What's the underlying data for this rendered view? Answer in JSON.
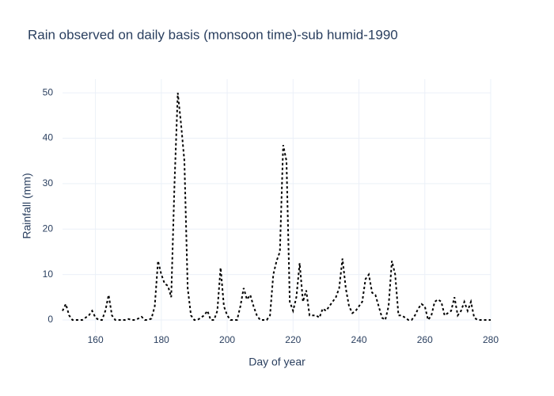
{
  "chart_data": {
    "type": "line",
    "title": "Rain observed on daily basis (monsoon time)-sub humid-1990",
    "x_label": "Day of year",
    "y_label": "Rainfall (mm)",
    "x": [
      150,
      151,
      152,
      153,
      154,
      155,
      156,
      157,
      158,
      159,
      160,
      161,
      162,
      163,
      164,
      165,
      166,
      167,
      168,
      169,
      170,
      171,
      172,
      173,
      174,
      175,
      176,
      177,
      178,
      179,
      180,
      181,
      182,
      183,
      184,
      185,
      186,
      187,
      188,
      189,
      190,
      191,
      192,
      193,
      194,
      195,
      196,
      197,
      198,
      199,
      200,
      201,
      202,
      203,
      204,
      205,
      206,
      207,
      208,
      209,
      210,
      211,
      212,
      213,
      214,
      215,
      216,
      217,
      218,
      219,
      220,
      221,
      222,
      223,
      224,
      225,
      226,
      227,
      228,
      229,
      230,
      231,
      232,
      233,
      234,
      235,
      236,
      237,
      238,
      239,
      240,
      241,
      242,
      243,
      244,
      245,
      246,
      247,
      248,
      249,
      250,
      251,
      252,
      253,
      254,
      255,
      256,
      257,
      258,
      259,
      260,
      261,
      262,
      263,
      264,
      265,
      266,
      267,
      268,
      269,
      270,
      271,
      272,
      273,
      274,
      275,
      276,
      277,
      278,
      279,
      280
    ],
    "series": [
      {
        "name": "Rainfall",
        "color": "#000000",
        "values": [
          2,
          3.5,
          1,
          0,
          0,
          0,
          0,
          0.5,
          1,
          2,
          0.5,
          0,
          0,
          2,
          5.5,
          1,
          0,
          0,
          0,
          0,
          0.2,
          0,
          0,
          0.3,
          0.7,
          0,
          0,
          0.3,
          3,
          13,
          10,
          8,
          7.5,
          5,
          30,
          50,
          43,
          35,
          7,
          1,
          0,
          0,
          0.5,
          1,
          2,
          0,
          0,
          2,
          11.5,
          3,
          1,
          0,
          0,
          0,
          3,
          7,
          4.5,
          5.5,
          3,
          1,
          0,
          0,
          0,
          1,
          10,
          13,
          15,
          38.5,
          35,
          4,
          2,
          5,
          12.5,
          4,
          6.5,
          1,
          1,
          1,
          0.5,
          2.5,
          2,
          3,
          4,
          5,
          7,
          13.5,
          7,
          3,
          1.5,
          2,
          3,
          4,
          9,
          10,
          6,
          5.5,
          3,
          0.5,
          0,
          3,
          13,
          10,
          1,
          1,
          0.5,
          0,
          0,
          1,
          2.5,
          3.5,
          3,
          0,
          1,
          4,
          4.5,
          4,
          1,
          1.5,
          2,
          5,
          1,
          2,
          4,
          2,
          4,
          0.5,
          0,
          0,
          0,
          0,
          0
        ]
      }
    ],
    "xlim": [
      150,
      280
    ],
    "ylim": [
      -2.8,
      53
    ],
    "xticks": [
      160,
      180,
      200,
      220,
      240,
      260,
      280
    ],
    "yticks": [
      0,
      10,
      20,
      30,
      40,
      50
    ],
    "grid": true
  }
}
